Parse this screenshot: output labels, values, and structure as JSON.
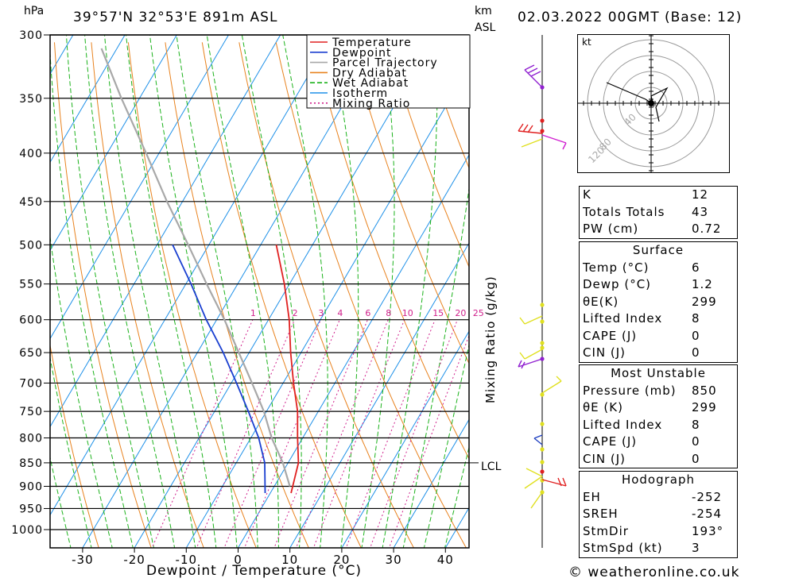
{
  "header": {
    "pressure_unit": "hPa",
    "location": "39°57'N  32°53'E  891m  ASL",
    "height_unit_line1": "km",
    "height_unit_line2": "ASL",
    "datetime": "02.03.2022  00GMT  (Base: 12)"
  },
  "chart_data": {
    "type": "line",
    "title": "",
    "xlabel": "Dewpoint / Temperature (°C)",
    "ylabel": "hPa",
    "xlim": [
      -40,
      40
    ],
    "ylim": [
      1050,
      300
    ],
    "skew": true,
    "x_ticks": [
      "-30",
      "-20",
      "-10",
      "0",
      "10",
      "20",
      "30",
      "40"
    ],
    "pressure_levels": [
      300,
      350,
      400,
      450,
      500,
      550,
      600,
      650,
      700,
      750,
      800,
      850,
      900,
      950,
      1000
    ],
    "pressure_labels": [
      "300",
      "350",
      "400",
      "450",
      "500",
      "550",
      "600",
      "650",
      "700",
      "750",
      "800",
      "850",
      "900",
      "950",
      "1000"
    ],
    "legend": [
      "Temperature",
      "Dewpoint",
      "Parcel Trajectory",
      "Dry Adiabat",
      "Wet Adiabat",
      "Isotherm",
      "Mixing Ratio"
    ],
    "legend_position": "top-right",
    "series": [
      {
        "name": "Temperature",
        "color": "#e02020",
        "points": [
          {
            "p": 915,
            "t": 4.0
          },
          {
            "p": 850,
            "t": 2.0
          },
          {
            "p": 800,
            "t": -1.0
          },
          {
            "p": 750,
            "t": -4.0
          },
          {
            "p": 700,
            "t": -8.0
          },
          {
            "p": 650,
            "t": -12.0
          },
          {
            "p": 600,
            "t": -16.0
          },
          {
            "p": 550,
            "t": -21.0
          },
          {
            "p": 500,
            "t": -27.0
          }
        ]
      },
      {
        "name": "Dewpoint",
        "color": "#1a3fd0",
        "points": [
          {
            "p": 915,
            "t": -1.0
          },
          {
            "p": 850,
            "t": -4.5
          },
          {
            "p": 800,
            "t": -8.5
          },
          {
            "p": 750,
            "t": -13.5
          },
          {
            "p": 700,
            "t": -19.0
          },
          {
            "p": 650,
            "t": -25.0
          },
          {
            "p": 600,
            "t": -32.0
          },
          {
            "p": 550,
            "t": -39.0
          },
          {
            "p": 500,
            "t": -47.0
          }
        ]
      },
      {
        "name": "Parcel Trajectory",
        "color": "#a8a8a8",
        "points": [
          {
            "p": 900,
            "t": 3.0
          },
          {
            "p": 850,
            "t": -1.0
          },
          {
            "p": 800,
            "t": -6.0
          },
          {
            "p": 750,
            "t": -10.5
          },
          {
            "p": 700,
            "t": -16.0
          },
          {
            "p": 650,
            "t": -22.0
          },
          {
            "p": 600,
            "t": -28.5
          },
          {
            "p": 550,
            "t": -36.0
          },
          {
            "p": 500,
            "t": -44.0
          },
          {
            "p": 450,
            "t": -53.0
          },
          {
            "p": 400,
            "t": -62.5
          },
          {
            "p": 350,
            "t": -73.5
          },
          {
            "p": 310,
            "t": -83.0
          }
        ]
      }
    ],
    "mixing_ratio_labels": [
      "1",
      "2",
      "3",
      "4",
      "6",
      "8",
      "10",
      "15",
      "20",
      "25"
    ],
    "mixing_ratio_axis_label": "Mixing Ratio (g/kg)",
    "lcl_label": "LCL",
    "lcl_pressure": 850,
    "colors": {
      "temperature": "#e02020",
      "dewpoint": "#1a3fd0",
      "parcel": "#a8a8a8",
      "dry_adiabat": "#e8821e",
      "wet_adiabat": "#1bb21b",
      "isotherm": "#1e90e8",
      "mixing_ratio": "#d0208c"
    }
  },
  "hodograph": {
    "unit": "kt",
    "ring_labels": [
      "40",
      "80",
      "120"
    ]
  },
  "indices": {
    "top": [
      {
        "label": "K",
        "value": "12"
      },
      {
        "label": "Totals Totals",
        "value": "43"
      },
      {
        "label": "PW (cm)",
        "value": "0.72"
      }
    ],
    "surface": {
      "title": "Surface",
      "rows": [
        {
          "label": "Temp (°C)",
          "value": "6"
        },
        {
          "label": "Dewp (°C)",
          "value": "1.2"
        },
        {
          "label": "θE(K)",
          "value": "299"
        },
        {
          "label": "Lifted Index",
          "value": "8"
        },
        {
          "label": "CAPE (J)",
          "value": "0"
        },
        {
          "label": "CIN (J)",
          "value": "0"
        }
      ]
    },
    "most_unstable": {
      "title": "Most Unstable",
      "rows": [
        {
          "label": "Pressure (mb)",
          "value": "850"
        },
        {
          "label": "θE (K)",
          "value": "299"
        },
        {
          "label": "Lifted Index",
          "value": "8"
        },
        {
          "label": "CAPE (J)",
          "value": "0"
        },
        {
          "label": "CIN (J)",
          "value": "0"
        }
      ]
    },
    "hodograph": {
      "title": "Hodograph",
      "rows": [
        {
          "label": "EH",
          "value": "-252"
        },
        {
          "label": "SREH",
          "value": "-254"
        },
        {
          "label": "StmDir",
          "value": "193°"
        },
        {
          "label": "StmSpd (kt)",
          "value": "3"
        }
      ]
    }
  },
  "footer": {
    "copyright": "© weatheronline.co.uk"
  }
}
